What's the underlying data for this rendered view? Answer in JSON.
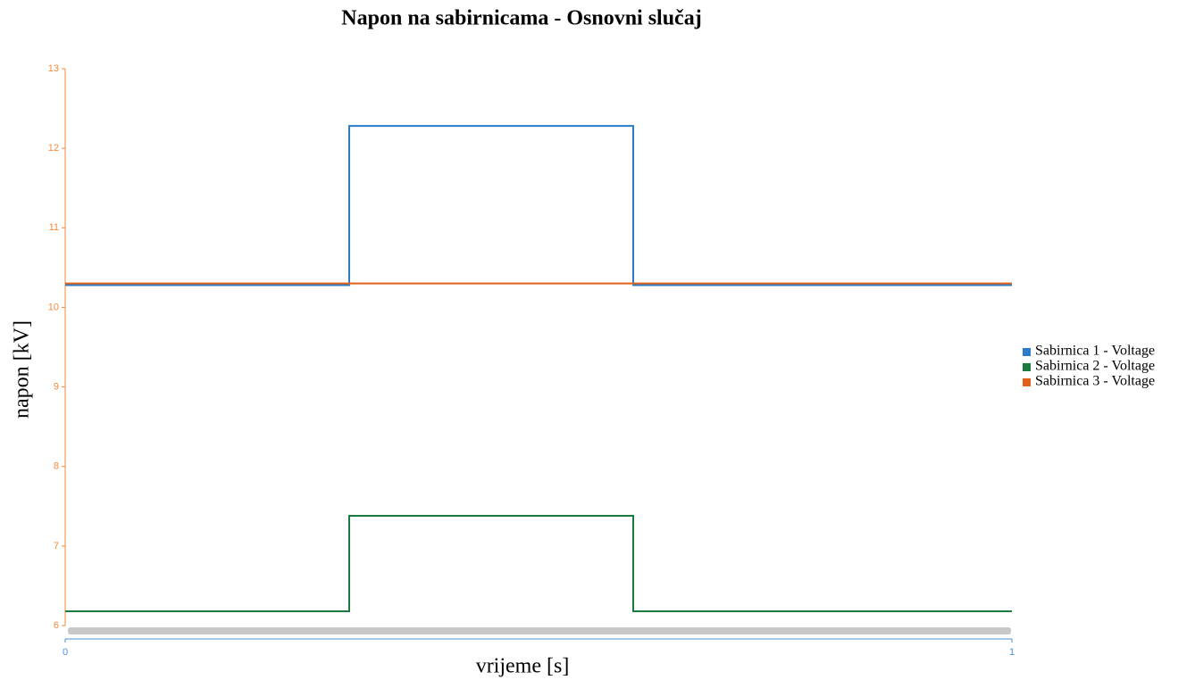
{
  "chart_data": {
    "type": "line",
    "title": "Napon na sabirnicama - Osnovni slučaj",
    "x_label": "vrijeme [s]",
    "y_label": "napon [kV]",
    "x": [
      0,
      0.3,
      0.3,
      0.6,
      0.6,
      1
    ],
    "series": [
      {
        "name": "Sabirnica 1 - Voltage",
        "color": "#2a7ccb",
        "values": [
          10.28,
          10.28,
          12.28,
          12.28,
          10.28,
          10.28
        ]
      },
      {
        "name": "Sabirnica 2 - Voltage",
        "color": "#1b7a3d",
        "values": [
          6.18,
          6.18,
          7.38,
          7.38,
          6.18,
          6.18
        ]
      },
      {
        "name": "Sabirnica 3 - Voltage",
        "color": "#e0621a",
        "values": [
          10.3,
          10.3,
          10.3,
          10.3,
          10.3,
          10.3
        ]
      }
    ],
    "xlim": [
      0,
      1
    ],
    "xticks": [
      0,
      1
    ],
    "ylim": [
      6,
      13
    ],
    "yticks": [
      6,
      7,
      8,
      9,
      10,
      11,
      12,
      13
    ],
    "legend": "right"
  }
}
